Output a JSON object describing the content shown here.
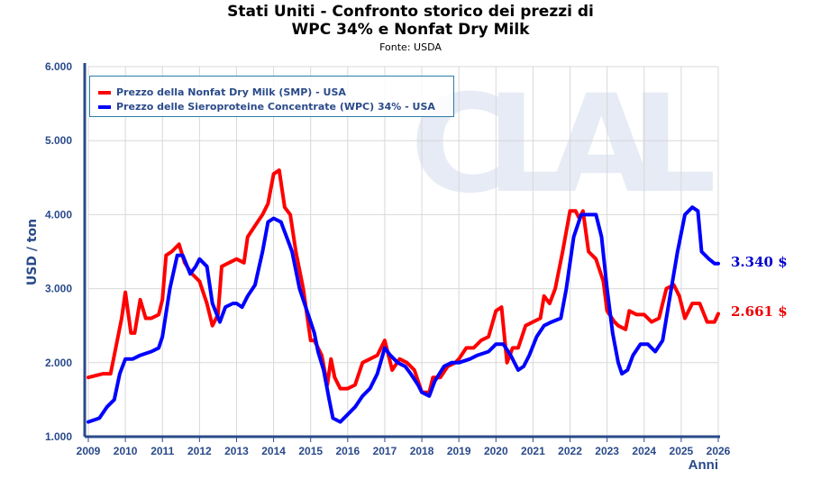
{
  "chart_data": {
    "type": "line",
    "title": "Stati Uniti - Confronto storico dei prezzi di",
    "title_line2": "WPC 34% e Nonfat Dry Milk",
    "subtitle": "Fonte: USDA",
    "xlabel": "Anni",
    "ylabel": "USD / ton",
    "xlim": [
      2009,
      2026
    ],
    "ylim": [
      1000,
      6000
    ],
    "x_ticks": [
      "2009",
      "2010",
      "2011",
      "2012",
      "2013",
      "2014",
      "2015",
      "2016",
      "2017",
      "2018",
      "2019",
      "2020",
      "2021",
      "2022",
      "2023",
      "2024",
      "2025",
      "2026"
    ],
    "y_ticks": [
      {
        "v": 1000,
        "label": "1.000"
      },
      {
        "v": 2000,
        "label": "2.000"
      },
      {
        "v": 3000,
        "label": "3.000"
      },
      {
        "v": 4000,
        "label": "4.000"
      },
      {
        "v": 5000,
        "label": "5.000"
      },
      {
        "v": 6000,
        "label": "6.000"
      }
    ],
    "grid": true,
    "legend_position": "top-left",
    "watermark": "CLAL",
    "series": [
      {
        "name": "Prezzo della Nonfat Dry Milk (SMP) - USA",
        "color": "#ff0000",
        "end_label": "2.661 $",
        "x": [
          2009.0,
          2009.4,
          2009.6,
          2009.7,
          2009.9,
          2010.0,
          2010.15,
          2010.25,
          2010.4,
          2010.55,
          2010.7,
          2010.9,
          2011.0,
          2011.1,
          2011.25,
          2011.45,
          2011.6,
          2011.8,
          2012.0,
          2012.2,
          2012.35,
          2012.5,
          2012.6,
          2012.8,
          2013.0,
          2013.2,
          2013.3,
          2013.5,
          2013.7,
          2013.85,
          2014.0,
          2014.15,
          2014.3,
          2014.45,
          2014.6,
          2014.8,
          2015.0,
          2015.1,
          2015.3,
          2015.45,
          2015.55,
          2015.65,
          2015.8,
          2016.0,
          2016.2,
          2016.4,
          2016.6,
          2016.8,
          2017.0,
          2017.2,
          2017.4,
          2017.6,
          2017.8,
          2018.0,
          2018.2,
          2018.3,
          2018.5,
          2018.7,
          2018.9,
          2019.0,
          2019.2,
          2019.4,
          2019.6,
          2019.8,
          2020.0,
          2020.15,
          2020.3,
          2020.45,
          2020.6,
          2020.8,
          2021.0,
          2021.2,
          2021.3,
          2021.45,
          2021.6,
          2021.8,
          2022.0,
          2022.15,
          2022.25,
          2022.35,
          2022.5,
          2022.7,
          2022.9,
          2023.0,
          2023.2,
          2023.3,
          2023.5,
          2023.6,
          2023.8,
          2024.0,
          2024.2,
          2024.4,
          2024.6,
          2024.8,
          2024.95,
          2025.1,
          2025.3,
          2025.5,
          2025.7,
          2025.9,
          2026.0
        ],
        "y": [
          1800,
          1850,
          1850,
          2100,
          2600,
          2950,
          2400,
          2400,
          2850,
          2600,
          2600,
          2650,
          2850,
          3450,
          3500,
          3600,
          3350,
          3200,
          3100,
          2800,
          2500,
          2650,
          3300,
          3350,
          3400,
          3350,
          3700,
          3850,
          4000,
          4150,
          4550,
          4600,
          4100,
          4000,
          3500,
          3000,
          2300,
          2300,
          2100,
          1700,
          2050,
          1800,
          1650,
          1650,
          1700,
          2000,
          2050,
          2100,
          2300,
          1900,
          2050,
          2000,
          1900,
          1600,
          1600,
          1800,
          1800,
          1950,
          2000,
          2050,
          2200,
          2200,
          2300,
          2350,
          2700,
          2750,
          2000,
          2200,
          2200,
          2500,
          2550,
          2600,
          2900,
          2800,
          3000,
          3500,
          4050,
          4050,
          3950,
          4050,
          3500,
          3400,
          3100,
          2700,
          2550,
          2500,
          2450,
          2700,
          2650,
          2650,
          2550,
          2600,
          3000,
          3050,
          2900,
          2600,
          2800,
          2800,
          2550,
          2550,
          2661
        ]
      },
      {
        "name": "Prezzo delle Sieroproteine Concentrate (WPC) 34% - USA",
        "color": "#0000ff",
        "end_label": "3.340 $",
        "x": [
          2009.0,
          2009.3,
          2009.5,
          2009.7,
          2009.85,
          2010.0,
          2010.2,
          2010.4,
          2010.7,
          2010.9,
          2011.0,
          2011.2,
          2011.4,
          2011.55,
          2011.75,
          2011.9,
          2012.0,
          2012.2,
          2012.35,
          2012.55,
          2012.7,
          2012.9,
          2013.0,
          2013.15,
          2013.3,
          2013.5,
          2013.7,
          2013.85,
          2014.0,
          2014.2,
          2014.35,
          2014.5,
          2014.7,
          2014.9,
          2015.1,
          2015.2,
          2015.35,
          2015.5,
          2015.6,
          2015.8,
          2016.0,
          2016.2,
          2016.4,
          2016.6,
          2016.8,
          2017.0,
          2017.15,
          2017.35,
          2017.55,
          2017.7,
          2017.9,
          2018.0,
          2018.2,
          2018.35,
          2018.6,
          2018.8,
          2019.0,
          2019.3,
          2019.5,
          2019.8,
          2020.0,
          2020.2,
          2020.4,
          2020.6,
          2020.75,
          2020.9,
          2021.1,
          2021.3,
          2021.5,
          2021.75,
          2021.9,
          2022.1,
          2022.3,
          2022.5,
          2022.7,
          2022.85,
          2023.0,
          2023.15,
          2023.3,
          2023.4,
          2023.55,
          2023.7,
          2023.9,
          2024.1,
          2024.3,
          2024.5,
          2024.7,
          2024.9,
          2025.1,
          2025.3,
          2025.45,
          2025.55,
          2025.75,
          2025.9,
          2026.0
        ],
        "y": [
          1200,
          1250,
          1400,
          1500,
          1850,
          2050,
          2050,
          2100,
          2150,
          2200,
          2350,
          3000,
          3450,
          3450,
          3200,
          3300,
          3400,
          3300,
          2800,
          2550,
          2750,
          2800,
          2800,
          2750,
          2900,
          3050,
          3500,
          3900,
          3950,
          3900,
          3700,
          3500,
          3000,
          2700,
          2400,
          2150,
          1900,
          1500,
          1250,
          1200,
          1300,
          1400,
          1550,
          1650,
          1850,
          2200,
          2100,
          2000,
          1950,
          1850,
          1700,
          1600,
          1550,
          1750,
          1950,
          2000,
          2000,
          2050,
          2100,
          2150,
          2250,
          2250,
          2100,
          1900,
          1950,
          2100,
          2350,
          2500,
          2550,
          2600,
          3000,
          3700,
          4000,
          4000,
          4000,
          3700,
          3000,
          2400,
          2000,
          1850,
          1900,
          2100,
          2250,
          2250,
          2150,
          2300,
          2900,
          3500,
          4000,
          4100,
          4050,
          3500,
          3400,
          3340,
          3340
        ]
      }
    ]
  }
}
